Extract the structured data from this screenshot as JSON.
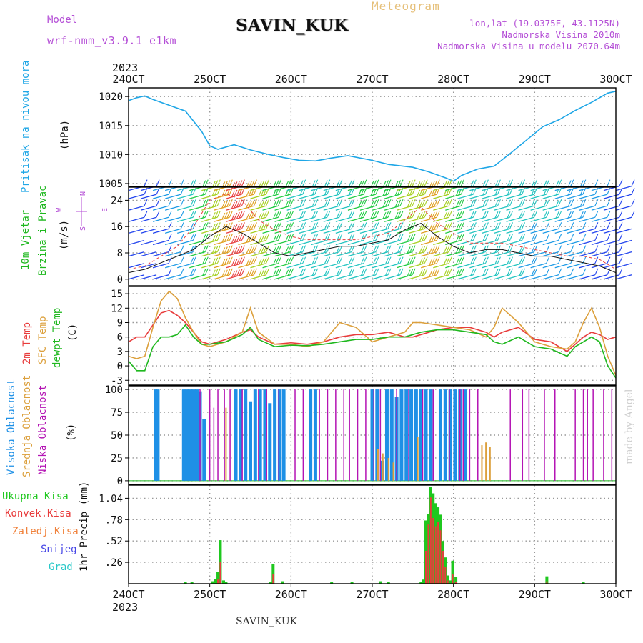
{
  "header": {
    "model_label": "Model",
    "model_name": "wrf-nmm_v3.9.1  e1km",
    "station": "SAVIN_KUK",
    "chart_type_label": "Meteogram",
    "location": "lon,lat (19.0375E, 43.1125N)",
    "elevation": "Nadmorska Visina 2010m",
    "model_elevation": "Nadmorska Visina u modelu 2070.64m",
    "footer_station": "SAVIN_KUK",
    "watermark": "made by Angel"
  },
  "time_axis": {
    "year": "2023",
    "ticks": [
      "24OCT",
      "25OCT",
      "26OCT",
      "27OCT",
      "28OCT",
      "29OCT",
      "30OCT"
    ]
  },
  "colors": {
    "pressure": "#1ea6e6",
    "temp2m": "#e83c3c",
    "sfc_temp": "#dca03c",
    "dewpt": "#1fb81f",
    "high_cloud": "#1e90e6",
    "mid_cloud": "#dca03c",
    "low_cloud": "#b414b4",
    "total_precip": "#1fc81f",
    "conv_precip": "#e83c3c",
    "wind_label": "#1fb81f",
    "dir_label": "#b44ed6"
  },
  "chart_data": [
    {
      "type": "line",
      "panel": "pressure",
      "ylabel_lines": [
        "Pritisak na nivou mora",
        "(hPa)"
      ],
      "yticks": [
        1005,
        1010,
        1015,
        1020
      ],
      "ylim": [
        1004.5,
        1021.5
      ],
      "x_days": [
        0,
        0.1,
        0.2,
        0.3,
        0.5,
        0.7,
        0.9,
        1.0,
        1.1,
        1.3,
        1.5,
        1.7,
        1.9,
        2.1,
        2.3,
        2.5,
        2.7,
        3.0,
        3.2,
        3.5,
        3.7,
        3.9,
        4.0,
        4.1,
        4.3,
        4.5,
        4.7,
        4.9,
        5.1,
        5.3,
        5.5,
        5.7,
        5.9,
        6.0
      ],
      "values": [
        1019.3,
        1019.8,
        1020.1,
        1019.5,
        1018.5,
        1017.5,
        1014.0,
        1011.5,
        1010.9,
        1011.7,
        1010.8,
        1010.1,
        1009.5,
        1009.0,
        1008.9,
        1009.4,
        1009.8,
        1009.0,
        1008.3,
        1007.8,
        1007.0,
        1006.0,
        1005.4,
        1006.4,
        1007.5,
        1008.0,
        1010.2,
        1012.5,
        1014.8,
        1016.0,
        1017.6,
        1019.0,
        1020.6,
        1020.9
      ],
      "grid": true
    },
    {
      "type": "barbs",
      "panel": "wind",
      "ylabel_lines": [
        "10m Vjetar",
        "Brzina i Pravac",
        "(m/s)"
      ],
      "direction_labels": [
        "N",
        "E",
        "W",
        "S"
      ],
      "yticks": [
        0,
        8,
        16,
        24
      ],
      "ylim": [
        -2,
        28
      ],
      "x_days": [
        0,
        0.2,
        0.4,
        0.6,
        0.8,
        1.0,
        1.2,
        1.4,
        1.6,
        1.8,
        2.0,
        2.2,
        2.4,
        2.6,
        2.8,
        3.0,
        3.2,
        3.4,
        3.6,
        3.8,
        4.0,
        4.2,
        4.4,
        4.6,
        4.8,
        5.0,
        5.2,
        5.4,
        5.6,
        5.8,
        6.0
      ],
      "speed": [
        2,
        3,
        5,
        7,
        9,
        13,
        16,
        14,
        11,
        8,
        7,
        8,
        9,
        10,
        10,
        11,
        12,
        15,
        17,
        13,
        10,
        8,
        9,
        9,
        8,
        7,
        7,
        6,
        5,
        4,
        2
      ],
      "gust": [
        3,
        4,
        7,
        10,
        16,
        24,
        26,
        24,
        18,
        15,
        13,
        12,
        12,
        12,
        12,
        13,
        14,
        18,
        22,
        17,
        14,
        11,
        11,
        11,
        10,
        9,
        8,
        7,
        7,
        6,
        3
      ],
      "grid": true
    },
    {
      "type": "line",
      "panel": "temperature",
      "ylabel_lines": [
        "2m Temp",
        "SFC Temp",
        "dewpt Temp",
        "(C)"
      ],
      "yticks": [
        -3,
        0,
        3,
        6,
        9,
        12,
        15
      ],
      "ylim": [
        -4,
        16.5
      ],
      "x_days": [
        0,
        0.1,
        0.2,
        0.3,
        0.4,
        0.5,
        0.6,
        0.7,
        0.8,
        0.9,
        1.0,
        1.2,
        1.4,
        1.5,
        1.6,
        1.8,
        2.0,
        2.2,
        2.4,
        2.6,
        2.8,
        3.0,
        3.2,
        3.4,
        3.5,
        3.6,
        3.8,
        4.0,
        4.2,
        4.4,
        4.5,
        4.6,
        4.8,
        5.0,
        5.2,
        5.4,
        5.5,
        5.6,
        5.7,
        5.8,
        5.9,
        6.0
      ],
      "series": [
        {
          "name": "2m Temp",
          "values": [
            5.0,
            6.0,
            6.0,
            8.5,
            11.0,
            11.5,
            10.5,
            9.0,
            7.0,
            5.0,
            4.5,
            5.5,
            7.0,
            7.5,
            6.0,
            4.5,
            4.8,
            4.5,
            5.0,
            6.0,
            6.5,
            6.5,
            7.0,
            6.0,
            6.0,
            6.5,
            7.5,
            8.0,
            8.0,
            7.0,
            6.0,
            7.0,
            8.0,
            5.5,
            5.0,
            3.0,
            4.5,
            6.0,
            7.0,
            6.5,
            5.5,
            6.0
          ]
        },
        {
          "name": "SFC Temp",
          "values": [
            2.0,
            1.5,
            2.0,
            8.0,
            13.5,
            15.5,
            14.0,
            10.0,
            7.0,
            4.5,
            4.0,
            5.0,
            7.0,
            12.0,
            7.0,
            4.5,
            4.5,
            4.0,
            5.0,
            9.0,
            8.0,
            5.0,
            6.0,
            7.0,
            9.0,
            9.0,
            8.5,
            8.0,
            7.5,
            6.0,
            8.0,
            12.0,
            9.0,
            5.0,
            4.0,
            3.5,
            5.0,
            9.0,
            12.0,
            8.0,
            2.0,
            -2.0
          ]
        },
        {
          "name": "dewpt Temp",
          "values": [
            1.0,
            -1.0,
            -1.0,
            4.0,
            6.0,
            6.0,
            6.5,
            8.5,
            6.0,
            4.5,
            4.5,
            5.0,
            6.5,
            8.0,
            5.5,
            4.0,
            4.3,
            4.2,
            4.5,
            5.0,
            5.5,
            5.5,
            6.0,
            6.0,
            6.5,
            7.0,
            7.5,
            7.5,
            7.0,
            6.5,
            5.0,
            4.5,
            6.0,
            4.0,
            3.5,
            2.0,
            4.0,
            5.0,
            6.0,
            5.0,
            0.0,
            -2.5
          ]
        }
      ],
      "grid": true
    },
    {
      "type": "bar",
      "panel": "clouds",
      "ylabel_lines": [
        "Visoka Oblacnost",
        "Srednja Oblacnost",
        "Niska Oblacnost",
        "(%)"
      ],
      "yticks": [
        0,
        25,
        50,
        75,
        100
      ],
      "ylim": [
        -4,
        104
      ],
      "series": [
        {
          "name": "Visoka Oblacnost",
          "x_days": [
            0.33,
            0.36,
            0.68,
            0.72,
            0.76,
            0.8,
            0.84,
            0.88,
            0.93,
            1.32,
            1.38,
            1.44,
            1.5,
            1.56,
            1.62,
            1.68,
            1.74,
            1.8,
            1.86,
            1.91,
            2.24,
            2.3,
            3.0,
            3.06,
            3.12,
            3.18,
            3.24,
            3.3,
            3.36,
            3.42,
            3.48,
            3.54,
            3.6,
            3.66,
            3.72,
            3.84,
            3.9,
            3.96,
            4.02,
            4.08,
            4.14
          ],
          "values": [
            100,
            100,
            100,
            100,
            100,
            100,
            100,
            98,
            68,
            100,
            100,
            100,
            87,
            100,
            100,
            100,
            85,
            100,
            100,
            100,
            100,
            100,
            100,
            100,
            22,
            100,
            100,
            92,
            100,
            100,
            100,
            100,
            100,
            100,
            100,
            100,
            100,
            100,
            100,
            100,
            100
          ]
        },
        {
          "name": "Srednja Oblacnost",
          "x_days": [
            1.2,
            3.07,
            3.13,
            3.2,
            3.26,
            3.56,
            4.35,
            4.4,
            4.45
          ],
          "values": [
            80,
            35,
            30,
            25,
            20,
            48,
            39,
            42,
            37
          ]
        },
        {
          "name": "Niska Oblacnost",
          "x_days": [
            0.88,
            1.0,
            1.05,
            1.1,
            1.18,
            1.25,
            1.4,
            1.6,
            1.7,
            1.85,
            2.05,
            2.15,
            2.35,
            2.45,
            2.55,
            2.65,
            2.72,
            2.82,
            2.92,
            3.02,
            3.1,
            3.3,
            3.45,
            3.62,
            3.75,
            3.95,
            4.08,
            4.12,
            4.2,
            4.3,
            4.7,
            4.85,
            4.93,
            5.12,
            5.25,
            5.5,
            5.6,
            5.65,
            5.72,
            5.85,
            5.95
          ],
          "values": [
            100,
            100,
            80,
            100,
            100,
            100,
            100,
            100,
            100,
            100,
            100,
            100,
            100,
            100,
            100,
            100,
            100,
            100,
            100,
            100,
            100,
            100,
            100,
            100,
            100,
            100,
            100,
            100,
            100,
            100,
            100,
            100,
            100,
            100,
            100,
            100,
            100,
            100,
            100,
            100,
            100
          ]
        }
      ],
      "grid": true
    },
    {
      "type": "bar",
      "panel": "precip",
      "ylabel": "1hr Precip (mm)",
      "legend": [
        "Ukupna Kisa",
        "Konvek.Kisa",
        "Zaledj.Kisa",
        "Snijeg",
        "Grad"
      ],
      "yticks": [
        0.26,
        0.52,
        0.78,
        1.04
      ],
      "ylim": [
        0,
        1.2
      ],
      "x_days": [
        0.7,
        0.78,
        1.03,
        1.07,
        1.1,
        1.13,
        1.17,
        1.2,
        1.75,
        1.78,
        1.9,
        2.5,
        2.75,
        3.1,
        3.2,
        3.6,
        3.63,
        3.66,
        3.69,
        3.72,
        3.75,
        3.78,
        3.81,
        3.84,
        3.87,
        3.9,
        3.93,
        3.96,
        3.99,
        4.03,
        5.15,
        5.6
      ],
      "series": [
        {
          "name": "Ukupna Kisa",
          "values": [
            0.02,
            0.02,
            0.03,
            0.06,
            0.14,
            0.53,
            0.04,
            0.02,
            0.02,
            0.24,
            0.03,
            0.02,
            0.02,
            0.03,
            0.02,
            0.02,
            0.05,
            0.77,
            0.85,
            1.18,
            1.1,
            0.98,
            0.93,
            0.84,
            0.52,
            0.32,
            0.1,
            0.04,
            0.28,
            0.08,
            0.09,
            0.02
          ]
        },
        {
          "name": "Konvek.Kisa",
          "values": [
            0,
            0,
            0,
            0,
            0.05,
            0.26,
            0,
            0,
            0,
            0.12,
            0,
            0,
            0,
            0,
            0,
            0,
            0,
            0.4,
            0.72,
            1.05,
            0.8,
            0.7,
            0.75,
            0.65,
            0.4,
            0.2,
            0.04,
            0,
            0.12,
            0.02,
            0.03,
            0
          ]
        }
      ],
      "grid": true
    }
  ]
}
